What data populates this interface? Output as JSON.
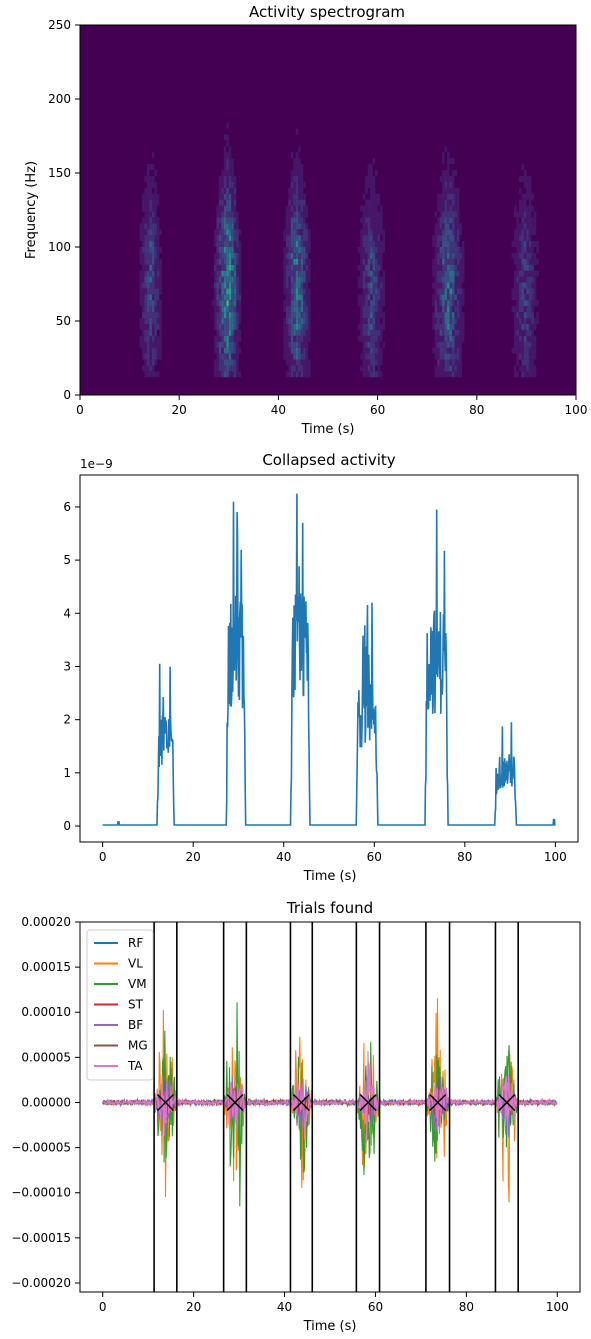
{
  "chart_data": [
    {
      "type": "heatmap",
      "title": "Activity spectrogram",
      "xlabel": "Time (s)",
      "ylabel": "Frequency (Hz)",
      "xlim": [
        0,
        100
      ],
      "ylim": [
        0,
        250
      ],
      "xticks": [
        0,
        20,
        40,
        60,
        80,
        100
      ],
      "yticks": [
        0,
        50,
        100,
        150,
        200,
        250
      ],
      "colormap": "viridis",
      "background_color": "#440154",
      "activity_bursts": [
        {
          "start": 12,
          "end": 16,
          "peak_freq": 120,
          "intensity": 0.35
        },
        {
          "start": 27,
          "end": 32,
          "peak_freq": 120,
          "intensity": 0.6
        },
        {
          "start": 41,
          "end": 46,
          "peak_freq": 120,
          "intensity": 0.5
        },
        {
          "start": 56,
          "end": 61,
          "peak_freq": 110,
          "intensity": 0.35
        },
        {
          "start": 71,
          "end": 77,
          "peak_freq": 115,
          "intensity": 0.45
        },
        {
          "start": 87,
          "end": 92,
          "peak_freq": 110,
          "intensity": 0.3
        }
      ]
    },
    {
      "type": "line",
      "title": "Collapsed activity",
      "xlabel": "Time (s)",
      "ylabel": "",
      "scale_label": "1e−9",
      "xlim": [
        -5,
        105
      ],
      "ylim": [
        -0.3,
        6.6
      ],
      "xticks": [
        0,
        20,
        40,
        60,
        80,
        100
      ],
      "yticks": [
        0,
        1,
        2,
        3,
        4,
        5,
        6
      ],
      "color": "#1f77b4",
      "bursts": [
        {
          "start": 12.0,
          "end": 15.8,
          "peak": 3.05,
          "peak_t": 12.6
        },
        {
          "start": 27.3,
          "end": 31.6,
          "peak": 6.1,
          "peak_t": 28.9
        },
        {
          "start": 41.5,
          "end": 45.8,
          "peak": 6.25,
          "peak_t": 42.9
        },
        {
          "start": 56.0,
          "end": 60.8,
          "peak": 4.2,
          "peak_t": 59.5
        },
        {
          "start": 71.2,
          "end": 76.3,
          "peak": 5.95,
          "peak_t": 73.8
        },
        {
          "start": 86.6,
          "end": 91.4,
          "peak": 1.95,
          "peak_t": 90.3
        }
      ]
    },
    {
      "type": "line",
      "title": "Trials found",
      "xlabel": "Time (s)",
      "ylabel": "",
      "xlim": [
        -5,
        105
      ],
      "ylim": [
        -0.00021,
        0.0002
      ],
      "xticks": [
        0,
        20,
        40,
        60,
        80,
        100
      ],
      "yticks": [
        0.0002,
        0.00015,
        0.0001,
        5e-05,
        0,
        -5e-05,
        -0.0001,
        -0.00015,
        -0.0002
      ],
      "ytick_labels": [
        "0.00020",
        "0.00015",
        "0.00010",
        "0.00005",
        "0.00000",
        "−0.00005",
        "−0.00010",
        "−0.00015",
        "−0.00020"
      ],
      "legend_position": "top-left",
      "series": [
        {
          "name": "RF",
          "color": "#1f77b4",
          "amp": 3.5e-05
        },
        {
          "name": "VL",
          "color": "#ff7f0e",
          "amp": 0.00017
        },
        {
          "name": "VM",
          "color": "#2ca02c",
          "amp": 0.00016
        },
        {
          "name": "ST",
          "color": "#d62728",
          "amp": 3e-05
        },
        {
          "name": "BF",
          "color": "#9467bd",
          "amp": 6e-05
        },
        {
          "name": "MG",
          "color": "#8c564b",
          "amp": 3e-05
        },
        {
          "name": "TA",
          "color": "#e377c2",
          "amp": 7e-05
        }
      ],
      "trial_boundaries": [
        {
          "start": 11.3,
          "end": 16.3
        },
        {
          "start": 26.6,
          "end": 31.6
        },
        {
          "start": 41.3,
          "end": 46.1
        },
        {
          "start": 55.8,
          "end": 60.9
        },
        {
          "start": 71.1,
          "end": 76.3
        },
        {
          "start": 86.4,
          "end": 91.4
        }
      ],
      "trial_markers": [
        13.8,
        29.1,
        43.7,
        58.4,
        73.7,
        88.9
      ]
    }
  ]
}
